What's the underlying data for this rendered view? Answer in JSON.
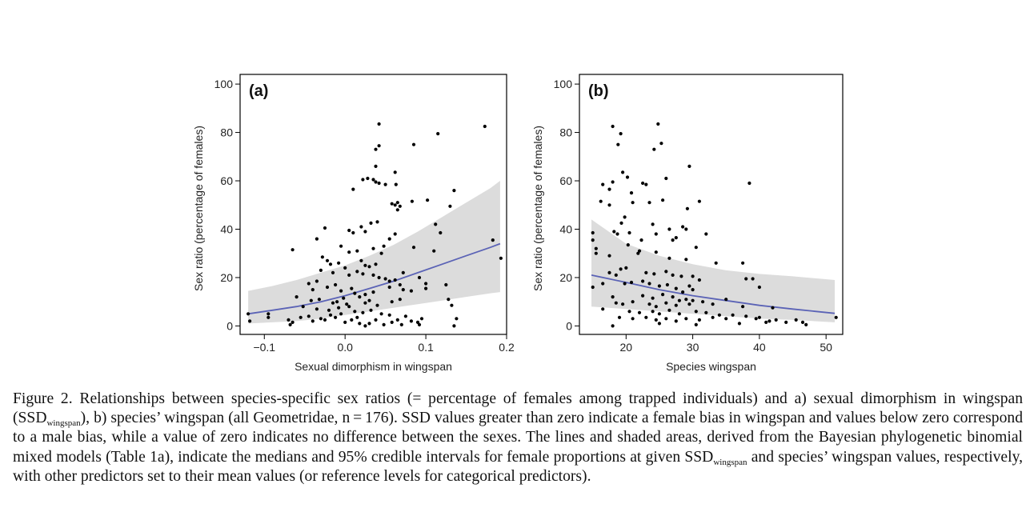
{
  "chart_data": [
    {
      "type": "scatter",
      "panel_label": "(a)",
      "xlabel": "Sexual dimorphism in wingspan",
      "ylabel": "Sex ratio (percentage of females)",
      "xlim": [
        -0.13,
        0.2
      ],
      "ylim": [
        -3.5,
        104
      ],
      "xticks": [
        -0.1,
        0.0,
        0.1,
        0.2
      ],
      "xtick_labels": [
        "−0.1",
        "0.0",
        "0.1",
        "0.2"
      ],
      "yticks": [
        0,
        20,
        40,
        60,
        80,
        100
      ],
      "ytick_labels": [
        "0",
        "20",
        "40",
        "60",
        "80",
        "100"
      ],
      "grid": false,
      "line_color": "#5b63b6",
      "band_color": "#dcdcdc",
      "fit_line": {
        "x": [
          -0.12,
          -0.09,
          -0.06,
          -0.03,
          0.0,
          0.03,
          0.06,
          0.09,
          0.12,
          0.15,
          0.18,
          0.192
        ],
        "y": [
          5,
          6.5,
          8,
          10,
          12.5,
          15.5,
          18.5,
          22,
          25.5,
          29,
          32.5,
          34
        ]
      },
      "ci_band": {
        "x": [
          -0.12,
          -0.09,
          -0.06,
          -0.03,
          0.0,
          0.03,
          0.06,
          0.09,
          0.12,
          0.15,
          0.18,
          0.192
        ],
        "lower": [
          1,
          1.5,
          2,
          3,
          4.5,
          6,
          7.5,
          9,
          10.5,
          12,
          13.5,
          14
        ],
        "upper": [
          14.5,
          16.5,
          19,
          22,
          25,
          29,
          33.5,
          39,
          45,
          51,
          57,
          60
        ]
      },
      "points": [
        [
          0.042,
          83.5
        ],
        [
          0.173,
          82.5
        ],
        [
          0.115,
          79.5
        ],
        [
          0.085,
          75
        ],
        [
          0.042,
          74.5
        ],
        [
          0.038,
          73
        ],
        [
          0.038,
          66
        ],
        [
          0.062,
          63.5
        ],
        [
          0.028,
          61
        ],
        [
          0.022,
          60.5
        ],
        [
          0.035,
          60.5
        ],
        [
          0.038,
          59.5
        ],
        [
          0.042,
          59
        ],
        [
          0.05,
          58.5
        ],
        [
          0.063,
          58.5
        ],
        [
          0.01,
          56.5
        ],
        [
          0.102,
          52
        ],
        [
          0.083,
          51.5
        ],
        [
          0.065,
          51
        ],
        [
          0.058,
          50.5
        ],
        [
          0.062,
          50
        ],
        [
          0.068,
          49.5
        ],
        [
          0.135,
          56
        ],
        [
          0.13,
          49.5
        ],
        [
          0.065,
          48
        ],
        [
          0.112,
          42
        ],
        [
          0.02,
          41
        ],
        [
          0.032,
          42.5
        ],
        [
          0.04,
          43
        ],
        [
          0.025,
          39
        ],
        [
          0.005,
          39.5
        ],
        [
          0.01,
          38.5
        ],
        [
          0.062,
          38
        ],
        [
          0.118,
          38.5
        ],
        [
          0.055,
          36
        ],
        [
          -0.025,
          40.5
        ],
        [
          -0.035,
          36
        ],
        [
          0.048,
          33
        ],
        [
          0.183,
          35.5
        ],
        [
          -0.065,
          31.5
        ],
        [
          -0.005,
          33
        ],
        [
          0.005,
          30.5
        ],
        [
          0.015,
          31
        ],
        [
          0.035,
          32
        ],
        [
          0.045,
          30
        ],
        [
          0.11,
          31
        ],
        [
          0.085,
          32.5
        ],
        [
          0.193,
          28
        ],
        [
          -0.028,
          28.5
        ],
        [
          -0.022,
          27
        ],
        [
          -0.018,
          25.5
        ],
        [
          -0.008,
          26
        ],
        [
          0.02,
          27
        ],
        [
          0.025,
          25
        ],
        [
          0.03,
          24.5
        ],
        [
          0.038,
          25.5
        ],
        [
          -0.03,
          23
        ],
        [
          -0.015,
          22
        ],
        [
          0.0,
          24
        ],
        [
          0.005,
          21
        ],
        [
          0.015,
          22.5
        ],
        [
          0.022,
          21.5
        ],
        [
          0.035,
          21
        ],
        [
          0.042,
          20
        ],
        [
          0.05,
          19.5
        ],
        [
          0.055,
          18.5
        ],
        [
          0.062,
          19
        ],
        [
          0.068,
          17
        ],
        [
          0.072,
          22
        ],
        [
          0.092,
          20
        ],
        [
          0.1,
          17.5
        ],
        [
          0.1,
          15.5
        ],
        [
          0.125,
          17
        ],
        [
          -0.045,
          17.5
        ],
        [
          -0.04,
          15
        ],
        [
          -0.035,
          18.5
        ],
        [
          -0.022,
          16
        ],
        [
          -0.012,
          17
        ],
        [
          -0.005,
          14.5
        ],
        [
          0.008,
          15.5
        ],
        [
          0.012,
          13.5
        ],
        [
          0.025,
          13
        ],
        [
          0.035,
          14
        ],
        [
          0.055,
          16
        ],
        [
          0.072,
          15
        ],
        [
          0.082,
          14.5
        ],
        [
          0.128,
          11
        ],
        [
          -0.06,
          12
        ],
        [
          -0.042,
          10.5
        ],
        [
          -0.032,
          11
        ],
        [
          -0.015,
          9.5
        ],
        [
          -0.01,
          10
        ],
        [
          -0.002,
          11.5
        ],
        [
          0.002,
          9
        ],
        [
          0.018,
          12
        ],
        [
          0.025,
          9.5
        ],
        [
          0.03,
          10.5
        ],
        [
          0.04,
          8.5
        ],
        [
          0.058,
          10
        ],
        [
          0.068,
          11
        ],
        [
          0.132,
          8.5
        ],
        [
          -0.052,
          8
        ],
        [
          -0.035,
          7
        ],
        [
          -0.02,
          6.5
        ],
        [
          -0.008,
          7.5
        ],
        [
          0.005,
          8
        ],
        [
          0.012,
          6
        ],
        [
          0.022,
          5.5
        ],
        [
          0.032,
          6.5
        ],
        [
          0.045,
          5
        ],
        [
          0.055,
          4.5
        ],
        [
          -0.095,
          5
        ],
        [
          -0.095,
          3.5
        ],
        [
          -0.07,
          2.5
        ],
        [
          -0.065,
          1.5
        ],
        [
          -0.055,
          3.5
        ],
        [
          -0.045,
          4
        ],
        [
          -0.04,
          2
        ],
        [
          -0.03,
          3
        ],
        [
          -0.025,
          2.5
        ],
        [
          -0.018,
          4.5
        ],
        [
          -0.012,
          3.5
        ],
        [
          0.0,
          1.5
        ],
        [
          0.008,
          2.5
        ],
        [
          0.015,
          3.5
        ],
        [
          0.018,
          1
        ],
        [
          0.03,
          1
        ],
        [
          0.038,
          2.5
        ],
        [
          0.048,
          0.5
        ],
        [
          0.058,
          1.5
        ],
        [
          0.065,
          2.5
        ],
        [
          0.07,
          0.5
        ],
        [
          0.082,
          2
        ],
        [
          0.09,
          1.5
        ],
        [
          0.092,
          0.5
        ],
        [
          0.095,
          3
        ],
        [
          0.138,
          3
        ],
        [
          0.135,
          0
        ],
        [
          -0.12,
          5
        ],
        [
          -0.118,
          2
        ],
        [
          -0.068,
          0.5
        ],
        [
          -0.005,
          5
        ],
        [
          0.025,
          0
        ],
        [
          0.075,
          4
        ]
      ]
    },
    {
      "type": "scatter",
      "panel_label": "(b)",
      "xlabel": "Species wingspan",
      "ylabel": "Sex ratio (percentage of females)",
      "xlim": [
        13,
        52.5
      ],
      "ylim": [
        -3.5,
        104
      ],
      "xticks": [
        20,
        30,
        40,
        50
      ],
      "xtick_labels": [
        "20",
        "30",
        "40",
        "50"
      ],
      "yticks": [
        0,
        20,
        40,
        60,
        80,
        100
      ],
      "ytick_labels": [
        "0",
        "20",
        "40",
        "60",
        "80",
        "100"
      ],
      "grid": false,
      "line_color": "#5b63b6",
      "band_color": "#dcdcdc",
      "fit_line": {
        "x": [
          14.8,
          20,
          25,
          30,
          35,
          40,
          45,
          51.3
        ],
        "y": [
          21,
          18,
          15,
          12.5,
          10.5,
          8.5,
          7,
          5.2
        ]
      },
      "ci_band": {
        "x": [
          14.8,
          20,
          25,
          30,
          35,
          40,
          45,
          51.3
        ],
        "lower": [
          8,
          7,
          6,
          5,
          4,
          3,
          2.5,
          1.5
        ],
        "upper": [
          44,
          34,
          29,
          25.5,
          23,
          21.5,
          20.5,
          19
        ]
      },
      "points": [
        [
          18,
          82.5
        ],
        [
          24.8,
          83.5
        ],
        [
          19.2,
          79.5
        ],
        [
          25.3,
          75.5
        ],
        [
          18.8,
          75
        ],
        [
          24.2,
          73
        ],
        [
          29.5,
          66
        ],
        [
          19.5,
          63.5
        ],
        [
          20.2,
          61.5
        ],
        [
          26,
          61
        ],
        [
          16.5,
          58.5
        ],
        [
          18,
          59.5
        ],
        [
          23,
          58.5
        ],
        [
          22.5,
          59
        ],
        [
          38.5,
          59
        ],
        [
          17.5,
          56.5
        ],
        [
          20.8,
          55
        ],
        [
          16.2,
          51.5
        ],
        [
          17.5,
          50
        ],
        [
          21,
          51
        ],
        [
          23.5,
          51
        ],
        [
          25.5,
          52
        ],
        [
          31,
          51.5
        ],
        [
          29.2,
          48.5
        ],
        [
          19.8,
          45
        ],
        [
          19.3,
          42.5
        ],
        [
          24,
          42
        ],
        [
          26.5,
          40
        ],
        [
          28.5,
          41
        ],
        [
          29,
          40
        ],
        [
          18.2,
          39
        ],
        [
          18.7,
          38
        ],
        [
          20.5,
          38.5
        ],
        [
          15,
          38.5
        ],
        [
          24.5,
          38
        ],
        [
          27.5,
          36.5
        ],
        [
          32,
          38
        ],
        [
          22.3,
          35.5
        ],
        [
          15,
          35.5
        ],
        [
          27,
          35.5
        ],
        [
          20.3,
          33.5
        ],
        [
          15.5,
          32
        ],
        [
          22,
          31
        ],
        [
          24.5,
          30.5
        ],
        [
          30.5,
          32.5
        ],
        [
          17.5,
          29
        ],
        [
          21.8,
          30
        ],
        [
          26.5,
          28
        ],
        [
          29,
          27.5
        ],
        [
          33.5,
          26
        ],
        [
          37.5,
          26
        ],
        [
          15.5,
          30
        ],
        [
          19.2,
          23.5
        ],
        [
          20,
          24
        ],
        [
          17.5,
          22
        ],
        [
          18.5,
          21
        ],
        [
          23,
          22
        ],
        [
          24.2,
          21.5
        ],
        [
          26,
          22.5
        ],
        [
          27,
          21
        ],
        [
          28.3,
          20.5
        ],
        [
          30,
          20.5
        ],
        [
          31,
          19
        ],
        [
          38,
          19.5
        ],
        [
          39,
          19.5
        ],
        [
          15,
          16
        ],
        [
          19.8,
          17.5
        ],
        [
          20.8,
          18
        ],
        [
          22.5,
          18.5
        ],
        [
          23.5,
          17.5
        ],
        [
          25,
          16.5
        ],
        [
          26.2,
          17
        ],
        [
          27.5,
          15.5
        ],
        [
          28.5,
          14
        ],
        [
          29.5,
          16.5
        ],
        [
          30,
          15
        ],
        [
          40,
          16
        ],
        [
          16.5,
          17.5
        ],
        [
          18,
          12
        ],
        [
          21,
          10
        ],
        [
          22.5,
          12.5
        ],
        [
          24,
          11.5
        ],
        [
          25.5,
          13
        ],
        [
          27,
          12
        ],
        [
          28,
          10.5
        ],
        [
          29,
          11
        ],
        [
          30,
          10.5
        ],
        [
          31.5,
          10
        ],
        [
          35,
          11
        ],
        [
          18.5,
          9.5
        ],
        [
          19.5,
          9
        ],
        [
          23.5,
          9
        ],
        [
          24.5,
          8
        ],
        [
          26,
          9.5
        ],
        [
          27.5,
          8.5
        ],
        [
          29.5,
          9
        ],
        [
          33,
          9
        ],
        [
          37.5,
          8
        ],
        [
          42,
          7.5
        ],
        [
          16.5,
          7
        ],
        [
          20.5,
          6
        ],
        [
          22,
          5.5
        ],
        [
          24,
          6
        ],
        [
          25,
          5
        ],
        [
          26.5,
          6.5
        ],
        [
          28,
          5
        ],
        [
          30.5,
          6
        ],
        [
          32,
          5.5
        ],
        [
          34,
          4.5
        ],
        [
          36,
          4.5
        ],
        [
          38,
          4
        ],
        [
          40,
          3.5
        ],
        [
          19,
          3.5
        ],
        [
          21,
          3
        ],
        [
          23,
          3.5
        ],
        [
          24.5,
          2.5
        ],
        [
          26,
          3
        ],
        [
          27.5,
          2
        ],
        [
          29,
          3
        ],
        [
          31,
          2.5
        ],
        [
          33,
          3.5
        ],
        [
          35,
          3
        ],
        [
          39.5,
          3
        ],
        [
          41.5,
          2
        ],
        [
          42.5,
          2.5
        ],
        [
          44,
          1.5
        ],
        [
          45.5,
          2.5
        ],
        [
          46.5,
          1.5
        ],
        [
          47,
          0.5
        ],
        [
          51.5,
          3.5
        ],
        [
          18,
          0
        ],
        [
          25,
          1
        ],
        [
          30.5,
          0.5
        ],
        [
          41,
          1.5
        ],
        [
          37,
          1
        ]
      ]
    }
  ],
  "caption": {
    "part1": "Figure 2. Relationships between species-specific sex ratios (= percentage of females among trapped individuals) and a) sexual dimorphism in wingspan (SSD",
    "sub1": "wingspan",
    "part2": "), b) species’ wingspan (all Geometridae, n = 176). SSD values greater than zero indicate a female bias in wingspan and values below zero correspond to a male bias, while a value of zero indicates no difference between the sexes. The lines and shaded areas, derived from the Bayesian phylogenetic binomial mixed models (Table 1a), indicate the medians and 95% credible intervals for female proportions at given SSD",
    "sub2": "wingspan",
    "part3": " and species’ wingspan values, respectively, with other predictors set to their mean values (or reference levels for categorical predictors)."
  }
}
